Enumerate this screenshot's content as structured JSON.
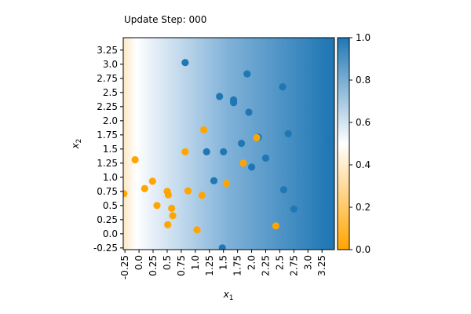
{
  "chart_data": {
    "type": "scatter",
    "title": "Update Step: 000",
    "xlabel": "x",
    "xlabel_sub": "1",
    "ylabel": "x",
    "ylabel_sub": "2",
    "xlim": [
      -0.28,
      3.47
    ],
    "ylim": [
      -0.28,
      3.47
    ],
    "x_ticks": [
      "-0.25",
      "0.0",
      "0.25",
      "0.5",
      "0.75",
      "1.0",
      "1.25",
      "1.5",
      "1.75",
      "2.0",
      "2.25",
      "2.5",
      "2.75",
      "3.0",
      "3.25"
    ],
    "x_tick_values": [
      -0.25,
      0.0,
      0.25,
      0.5,
      0.75,
      1.0,
      1.25,
      1.5,
      1.75,
      2.0,
      2.25,
      2.5,
      2.75,
      3.0,
      3.25
    ],
    "y_ticks": [
      "-0.25",
      "0.0",
      "0.25",
      "0.5",
      "0.75",
      "1.0",
      "1.25",
      "1.5",
      "1.75",
      "2.0",
      "2.25",
      "2.5",
      "2.75",
      "3.0",
      "3.25"
    ],
    "y_tick_values": [
      -0.25,
      0.0,
      0.25,
      0.5,
      0.75,
      1.0,
      1.25,
      1.5,
      1.75,
      2.0,
      2.25,
      2.5,
      2.75,
      3.0,
      3.25
    ],
    "colorbar": {
      "ticks": [
        "0.0",
        "0.2",
        "0.4",
        "0.6",
        "0.8",
        "1.0"
      ],
      "tick_values": [
        0.0,
        0.2,
        0.4,
        0.6,
        0.8,
        1.0
      ],
      "range": [
        0.0,
        1.0
      ],
      "low_color": "#ffa500",
      "mid_color": "#ffffff",
      "high_color": "#1f77b4"
    },
    "background_field": {
      "description_free": true,
      "boundary_x": [
        -0.05,
        0.15
      ],
      "full_value_x": 3.4
    },
    "grid": false,
    "series": [
      {
        "class": 1,
        "color": "#1f77b4",
        "points": [
          [
            0.82,
            3.03
          ],
          [
            1.92,
            2.83
          ],
          [
            2.55,
            2.6
          ],
          [
            1.43,
            2.43
          ],
          [
            1.68,
            2.37
          ],
          [
            1.68,
            2.32
          ],
          [
            1.95,
            2.15
          ],
          [
            2.65,
            1.77
          ],
          [
            2.12,
            1.71
          ],
          [
            3.4,
            1.62
          ],
          [
            1.82,
            1.6
          ],
          [
            1.2,
            1.45
          ],
          [
            1.5,
            1.45
          ],
          [
            2.25,
            1.34
          ],
          [
            2.0,
            1.18
          ],
          [
            1.33,
            0.94
          ],
          [
            2.57,
            0.78
          ],
          [
            2.75,
            0.44
          ],
          [
            1.48,
            -0.25
          ]
        ]
      },
      {
        "class": 0,
        "color": "#ffa500",
        "points": [
          [
            1.15,
            1.84
          ],
          [
            0.82,
            1.45
          ],
          [
            2.09,
            1.7
          ],
          [
            -0.07,
            1.31
          ],
          [
            1.85,
            1.25
          ],
          [
            0.24,
            0.93
          ],
          [
            1.55,
            0.89
          ],
          [
            0.1,
            0.8
          ],
          [
            0.87,
            0.76
          ],
          [
            0.5,
            0.75
          ],
          [
            0.52,
            0.69
          ],
          [
            1.12,
            0.68
          ],
          [
            -0.27,
            0.71
          ],
          [
            0.32,
            0.5
          ],
          [
            0.58,
            0.45
          ],
          [
            0.6,
            0.32
          ],
          [
            0.51,
            0.16
          ],
          [
            1.03,
            0.07
          ],
          [
            2.43,
            0.14
          ]
        ]
      }
    ]
  }
}
